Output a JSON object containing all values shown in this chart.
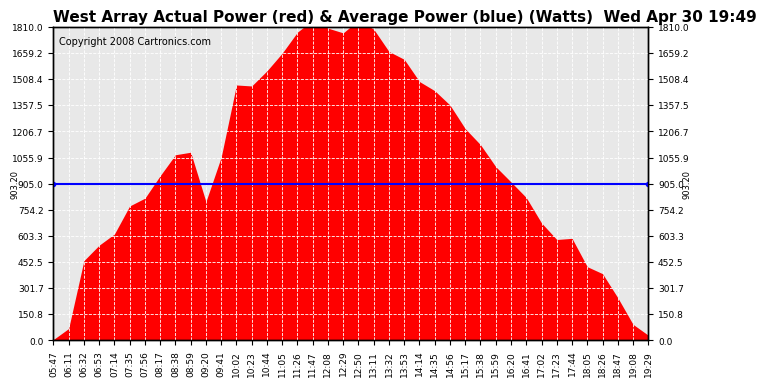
{
  "title": "West Array Actual Power (red) & Average Power (blue) (Watts)  Wed Apr 30 19:49",
  "copyright": "Copyright 2008 Cartronics.com",
  "bg_color": "#ffffff",
  "plot_bg_color": "#e8e8e8",
  "grid_color": "#ffffff",
  "fill_color": "#ff0000",
  "line_color": "#0000ff",
  "avg_power": 903.2,
  "ymax": 1810.0,
  "ymin": 0.0,
  "yticks": [
    0.0,
    150.8,
    301.7,
    452.5,
    603.3,
    754.2,
    905.0,
    1055.9,
    1206.7,
    1357.5,
    1508.4,
    1659.2,
    1810.0
  ],
  "xtick_labels": [
    "05:47",
    "06:11",
    "06:32",
    "06:53",
    "07:14",
    "07:35",
    "07:56",
    "08:17",
    "08:38",
    "08:59",
    "09:20",
    "09:41",
    "10:02",
    "10:23",
    "10:44",
    "11:05",
    "11:26",
    "11:47",
    "12:08",
    "12:29",
    "12:50",
    "13:11",
    "13:32",
    "13:53",
    "14:14",
    "14:35",
    "14:56",
    "15:17",
    "15:38",
    "15:59",
    "16:20",
    "16:41",
    "17:02",
    "17:23",
    "17:44",
    "18:05",
    "18:26",
    "18:47",
    "19:08",
    "19:29"
  ],
  "title_fontsize": 11,
  "copyright_fontsize": 7,
  "tick_fontsize": 6.5
}
